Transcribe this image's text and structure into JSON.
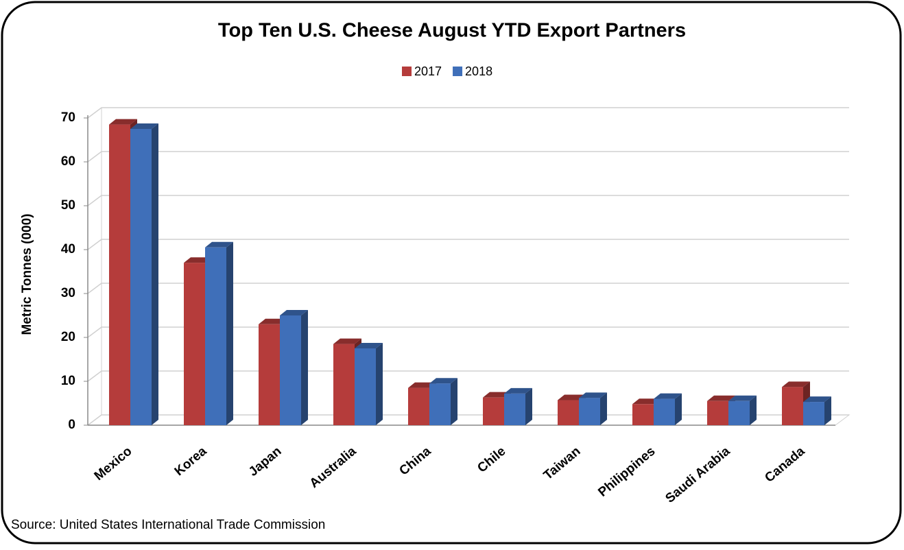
{
  "chart_data": {
    "type": "bar3d",
    "title": "Top Ten U.S. Cheese August YTD Export Partners",
    "y_label": "Metric Tonnes (000)",
    "source": "Source: United States International Trade Commission",
    "categories": [
      "Mexico",
      "Korea",
      "Japan",
      "Australia",
      "China",
      "Chile",
      "Taiwan",
      "Philippines",
      "Saudi Arabia",
      "Canada"
    ],
    "series": [
      {
        "name": "2017",
        "color": "#b53c3b",
        "values": [
          68.5,
          37,
          23,
          18.5,
          8.5,
          6.3,
          5.7,
          4.8,
          5.5,
          8.7
        ]
      },
      {
        "name": "2018",
        "color": "#3f6fb9",
        "values": [
          67.5,
          40.5,
          25,
          17.5,
          9.5,
          7.2,
          6.2,
          6,
          5.5,
          5.3
        ]
      }
    ],
    "ylim": [
      0,
      70
    ],
    "yticks": [
      0,
      10,
      20,
      30,
      40,
      50,
      60,
      70
    ],
    "grid": true,
    "legend": "top"
  }
}
